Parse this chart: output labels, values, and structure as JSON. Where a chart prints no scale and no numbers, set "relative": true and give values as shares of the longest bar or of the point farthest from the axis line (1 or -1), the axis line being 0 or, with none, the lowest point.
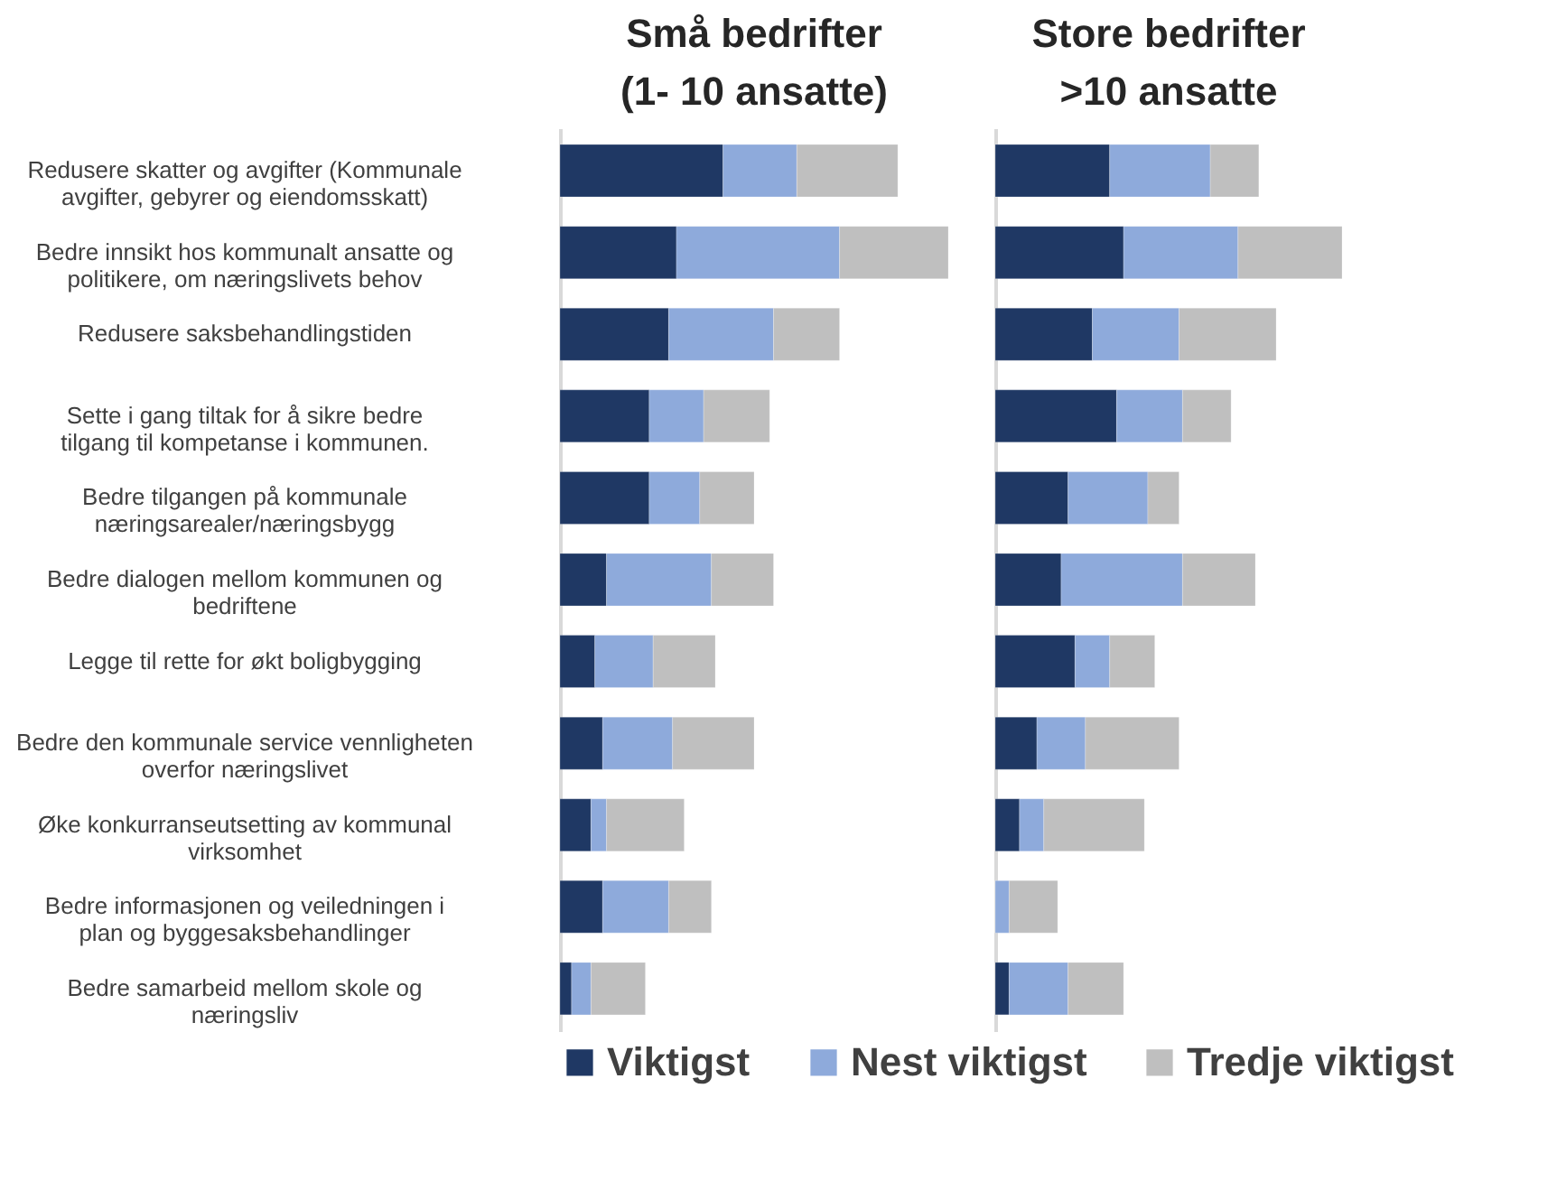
{
  "chart_data": [
    {
      "type": "bar",
      "orientation": "horizontal",
      "stacked": true,
      "relative": true,
      "title": "Små bedrifter\n(1- 10 ansatte)",
      "legend": "bottom",
      "tick_labels": "y",
      "categories": [
        "Redusere skatter og avgifter (Kommunale avgifter, gebyrer og eiendomsskatt)",
        "Bedre innsikt hos kommunalt ansatte og politikere, om næringslivets behov",
        "Redusere saksbehandlingstiden",
        "Sette i gang tiltak for å sikre bedre tilgang til kompetanse i kommunen.",
        "Bedre tilgangen på kommunale næringsarealer/næringsbygg",
        "Bedre dialogen mellom kommunen og bedriftene",
        "Legge til rette for økt boligbygging",
        "Bedre den kommunale service vennligheten overfor næringslivet",
        "Øke konkurranseutsetting av kommunal virksomhet",
        "Bedre informasjonen og veiledningen i plan og byggesaksbehandlinger",
        "Bedre samarbeid mellom skole og næringsliv"
      ],
      "series": [
        {
          "name": "Viktigst",
          "color": "#1f3864",
          "values": [
            0.42,
            0.3,
            0.28,
            0.23,
            0.23,
            0.12,
            0.09,
            0.11,
            0.08,
            0.11,
            0.03
          ]
        },
        {
          "name": "Nest viktigst",
          "color": "#8eaadb",
          "values": [
            0.19,
            0.42,
            0.27,
            0.14,
            0.13,
            0.27,
            0.15,
            0.18,
            0.04,
            0.17,
            0.05
          ]
        },
        {
          "name": "Tredje viktigst",
          "color": "#bfbfbf",
          "values": [
            0.26,
            0.28,
            0.17,
            0.17,
            0.14,
            0.16,
            0.16,
            0.21,
            0.2,
            0.11,
            0.14
          ]
        }
      ]
    },
    {
      "type": "bar",
      "orientation": "horizontal",
      "stacked": true,
      "relative": true,
      "title": "Store bedrifter\n>10 ansatte",
      "tick_labels": false,
      "categories": [
        null,
        null,
        null,
        null,
        null,
        null,
        null,
        null,
        null,
        null,
        null
      ],
      "series": [
        {
          "name": "Viktigst",
          "color": "#1f3864",
          "values": [
            0.33,
            0.37,
            0.28,
            0.35,
            0.21,
            0.19,
            0.23,
            0.12,
            0.07,
            0,
            0.04
          ]
        },
        {
          "name": "Nest viktigst",
          "color": "#8eaadb",
          "values": [
            0.29,
            0.33,
            0.25,
            0.19,
            0.23,
            0.35,
            0.1,
            0.14,
            0.07,
            0.04,
            0.17
          ]
        },
        {
          "name": "Tredje viktigst",
          "color": "#bfbfbf",
          "values": [
            0.14,
            0.3,
            0.28,
            0.14,
            0.09,
            0.21,
            0.13,
            0.27,
            0.29,
            0.14,
            0.16
          ]
        }
      ]
    }
  ]
}
